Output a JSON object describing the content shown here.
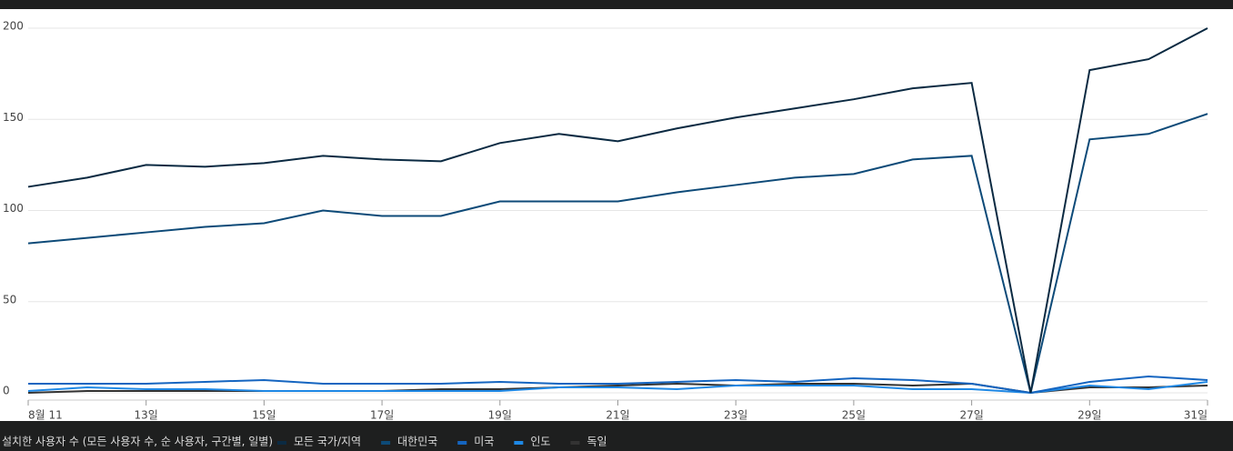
{
  "chart_data": {
    "type": "line",
    "title": "설치한 사용자 수 (모든 사용자 수, 순 사용자, 구간별, 일별)",
    "categories": [
      "8월 11",
      null,
      "13일",
      null,
      "15일",
      null,
      "17일",
      null,
      "19일",
      null,
      "21일",
      null,
      "23일",
      null,
      "25일",
      null,
      "27일",
      null,
      "29일",
      null,
      "31일"
    ],
    "series": [
      {
        "name": "모든 국가/지역",
        "color": "#0b2a42",
        "values": [
          113,
          118,
          125,
          124,
          126,
          130,
          128,
          127,
          137,
          142,
          138,
          145,
          151,
          156,
          161,
          167,
          170,
          0,
          177,
          183,
          200
        ]
      },
      {
        "name": "대한민국",
        "color": "#0d4a78",
        "values": [
          82,
          85,
          88,
          91,
          93,
          100,
          97,
          97,
          105,
          105,
          105,
          110,
          114,
          118,
          120,
          128,
          130,
          0,
          139,
          142,
          153
        ]
      },
      {
        "name": "미국",
        "color": "#1565c0",
        "values": [
          5,
          5,
          5,
          6,
          7,
          5,
          5,
          5,
          6,
          5,
          5,
          6,
          7,
          6,
          8,
          7,
          5,
          0,
          6,
          9,
          7
        ]
      },
      {
        "name": "인도",
        "color": "#1e88e5",
        "values": [
          1,
          3,
          2,
          2,
          1,
          1,
          1,
          1,
          1,
          3,
          3,
          2,
          4,
          4,
          4,
          2,
          2,
          0,
          4,
          2,
          6
        ]
      },
      {
        "name": "독일",
        "color": "#333333",
        "values": [
          0,
          1,
          1,
          1,
          1,
          1,
          1,
          2,
          2,
          3,
          4,
          5,
          4,
          5,
          5,
          4,
          5,
          0,
          3,
          3,
          4
        ]
      }
    ],
    "ylim": [
      0,
      200
    ],
    "yticks": [
      0,
      50,
      100,
      150,
      200
    ],
    "grid": true
  }
}
